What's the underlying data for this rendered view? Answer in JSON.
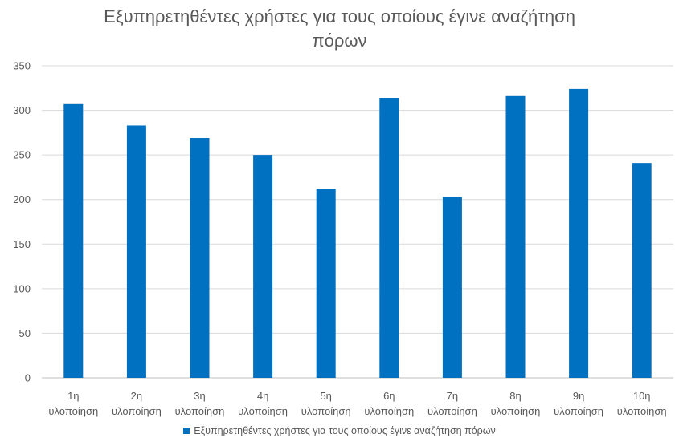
{
  "chart_data": {
    "type": "bar",
    "title": "Εξυπηρετηθέντες χρήστες για τους οποίους έγινε αναζήτηση πόρων",
    "categories": [
      "1η υλοποίηση",
      "2η υλοποίηση",
      "3η υλοποίηση",
      "4η υλοποίηση",
      "5η υλοποίηση",
      "6η υλοποίηση",
      "7η υλοποίηση",
      "8η υλοποίηση",
      "9η υλοποίηση",
      "10η υλοποίηση"
    ],
    "series": [
      {
        "name": "Εξυπηρετηθέντες χρήστες για τους οποίους έγινε αναζήτηση πόρων",
        "values": [
          307,
          283,
          269,
          250,
          212,
          314,
          203,
          316,
          324,
          241
        ],
        "color": "#0070c0"
      }
    ],
    "ylim": [
      0,
      350
    ],
    "yticks": [
      0,
      50,
      100,
      150,
      200,
      250,
      300,
      350
    ],
    "grid": true,
    "legend_position": "bottom"
  }
}
